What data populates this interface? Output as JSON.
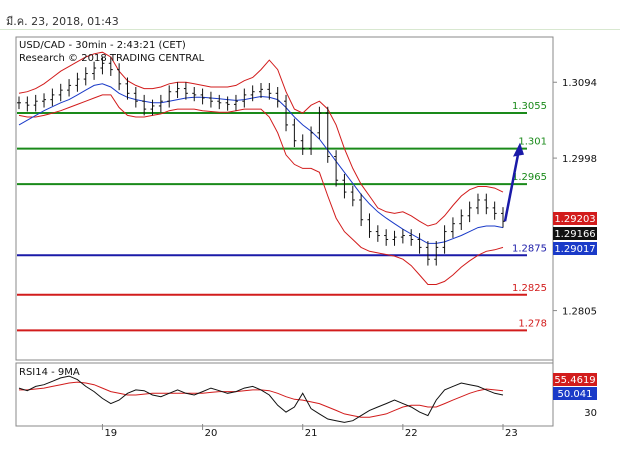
{
  "header": {
    "datestamp": "มี.ค. 23, 2018, 01:43"
  },
  "chart_data": {
    "type": "candlestick",
    "title": "USD/CAD - 30min - 2:43:21 (CET)",
    "subtitle": "Research © 2018 TRADING CENTRAL",
    "x_tick_labels": [
      "19",
      "20",
      "21",
      "22",
      "23"
    ],
    "y_tick_labels": [
      "1.3094",
      "1.2998",
      "1.2805"
    ],
    "price_range": [
      1.2745,
      1.315
    ],
    "levels": [
      {
        "value": 1.3055,
        "label": "1.3055",
        "color": "#1a8a1a",
        "label_color": "#1a8a1a"
      },
      {
        "value": 1.301,
        "label": "1.301",
        "color": "#1a8a1a",
        "label_color": "#1a8a1a"
      },
      {
        "value": 1.2965,
        "label": "1.2965",
        "color": "#1a8a1a",
        "label_color": "#1a8a1a"
      },
      {
        "value": 1.2875,
        "label": "1.2875",
        "color": "#1a1aa8",
        "label_color": "#1a1aa8"
      },
      {
        "value": 1.2825,
        "label": "1.2825",
        "color": "#d21c1c",
        "label_color": "#d21c1c"
      },
      {
        "value": 1.278,
        "label": "1.278",
        "color": "#d21c1c",
        "label_color": "#d21c1c"
      }
    ],
    "price_tags": [
      {
        "label": "1.29203",
        "value": 1.29203,
        "bg": "#d21c1c",
        "fg": "#ffffff"
      },
      {
        "label": "1.29166",
        "value": 1.29166,
        "bg": "#111111",
        "fg": "#ffffff"
      },
      {
        "label": "1.29017",
        "value": 1.29017,
        "bg": "#1a3ac8",
        "fg": "#ffffff"
      }
    ],
    "forecast_arrow": {
      "from": 1.2918,
      "to": 1.301
    },
    "price_series": [
      1.3068,
      1.3065,
      1.307,
      1.3072,
      1.3078,
      1.3084,
      1.309,
      1.3098,
      1.3105,
      1.3112,
      1.3118,
      1.311,
      1.3092,
      1.308,
      1.307,
      1.306,
      1.3064,
      1.307,
      1.3082,
      1.3086,
      1.308,
      1.3078,
      1.3074,
      1.307,
      1.3068,
      1.3066,
      1.307,
      1.3078,
      1.3082,
      1.3085,
      1.308,
      1.307,
      1.304,
      1.302,
      1.301,
      1.303,
      1.3055,
      1.3,
      1.297,
      1.2955,
      1.2945,
      1.292,
      1.2905,
      1.29,
      1.2895,
      1.2898,
      1.29,
      1.2895,
      1.2885,
      1.287,
      1.2885,
      1.2905,
      1.2915,
      1.2925,
      1.2935,
      1.2945,
      1.2935,
      1.2928,
      1.2918
    ],
    "sma_series": [
      1.304,
      1.3046,
      1.3052,
      1.3058,
      1.3063,
      1.3068,
      1.3072,
      1.3078,
      1.3084,
      1.309,
      1.3092,
      1.3088,
      1.308,
      1.3075,
      1.3072,
      1.307,
      1.3068,
      1.3068,
      1.307,
      1.3072,
      1.3074,
      1.3075,
      1.3075,
      1.3074,
      1.3073,
      1.3072,
      1.3071,
      1.3072,
      1.3074,
      1.3076,
      1.3075,
      1.3072,
      1.3062,
      1.305,
      1.304,
      1.3032,
      1.3022,
      1.3008,
      1.2994,
      1.298,
      1.2966,
      1.2952,
      1.294,
      1.293,
      1.2922,
      1.2915,
      1.2908,
      1.2902,
      1.2896,
      1.289,
      1.289,
      1.2892,
      1.2896,
      1.29,
      1.2905,
      1.291,
      1.2912,
      1.2912,
      1.291
    ],
    "bb_upper": [
      1.308,
      1.3082,
      1.3086,
      1.3092,
      1.31,
      1.3108,
      1.3114,
      1.312,
      1.3126,
      1.313,
      1.3132,
      1.3126,
      1.3108,
      1.3096,
      1.309,
      1.3086,
      1.3086,
      1.3088,
      1.3092,
      1.3094,
      1.3094,
      1.3092,
      1.309,
      1.3088,
      1.3088,
      1.3088,
      1.309,
      1.3096,
      1.31,
      1.311,
      1.3122,
      1.311,
      1.3082,
      1.306,
      1.3055,
      1.3065,
      1.307,
      1.306,
      1.304,
      1.301,
      1.2985,
      1.2965,
      1.295,
      1.2935,
      1.293,
      1.2928,
      1.293,
      1.2925,
      1.2918,
      1.2912,
      1.2915,
      1.2925,
      1.2938,
      1.295,
      1.2958,
      1.2962,
      1.2962,
      1.296,
      1.2955
    ],
    "bb_lower": [
      1.3052,
      1.305,
      1.305,
      1.3052,
      1.3055,
      1.3058,
      1.3062,
      1.3066,
      1.307,
      1.3074,
      1.3078,
      1.3078,
      1.3062,
      1.3052,
      1.305,
      1.305,
      1.3052,
      1.3054,
      1.3058,
      1.306,
      1.306,
      1.306,
      1.3058,
      1.3057,
      1.3056,
      1.3056,
      1.3058,
      1.306,
      1.306,
      1.306,
      1.305,
      1.303,
      1.3002,
      1.299,
      1.2985,
      1.2985,
      1.298,
      1.295,
      1.2922,
      1.2905,
      1.2895,
      1.2885,
      1.288,
      1.2878,
      1.2876,
      1.2874,
      1.287,
      1.2862,
      1.285,
      1.2838,
      1.2838,
      1.2842,
      1.285,
      1.286,
      1.2868,
      1.2875,
      1.288,
      1.2882,
      1.2885
    ],
    "x_tick_indices": [
      10,
      22,
      34,
      46,
      58
    ],
    "rsi": {
      "label": "RSI14 - 9MA",
      "y_tick_labels": [
        "30"
      ],
      "range": [
        15,
        85
      ],
      "value_tags": [
        {
          "label": "55.4619",
          "value": 55.4619,
          "bg": "#d21c1c",
          "fg": "#ffffff"
        },
        {
          "label": "50.041",
          "value": 50.041,
          "bg": "#1a3ac8",
          "fg": "#ffffff"
        }
      ],
      "rsi_series": [
        58,
        55,
        60,
        62,
        66,
        70,
        72,
        68,
        60,
        54,
        46,
        40,
        44,
        52,
        56,
        55,
        50,
        48,
        52,
        56,
        52,
        50,
        54,
        58,
        55,
        52,
        54,
        58,
        60,
        56,
        50,
        38,
        30,
        36,
        52,
        34,
        28,
        22,
        20,
        18,
        20,
        26,
        32,
        36,
        40,
        44,
        40,
        36,
        30,
        26,
        44,
        56,
        60,
        64,
        62,
        60,
        56,
        52,
        50
      ],
      "ma_series": [
        56,
        56,
        57,
        58,
        60,
        62,
        64,
        65,
        64,
        62,
        58,
        54,
        52,
        50,
        50,
        51,
        52,
        52,
        52,
        52,
        52,
        52,
        52,
        53,
        54,
        54,
        54,
        55,
        56,
        56,
        55,
        52,
        48,
        45,
        44,
        42,
        40,
        36,
        32,
        28,
        26,
        24,
        24,
        26,
        28,
        32,
        36,
        38,
        38,
        36,
        36,
        40,
        44,
        48,
        52,
        55,
        57,
        56,
        55
      ]
    }
  }
}
